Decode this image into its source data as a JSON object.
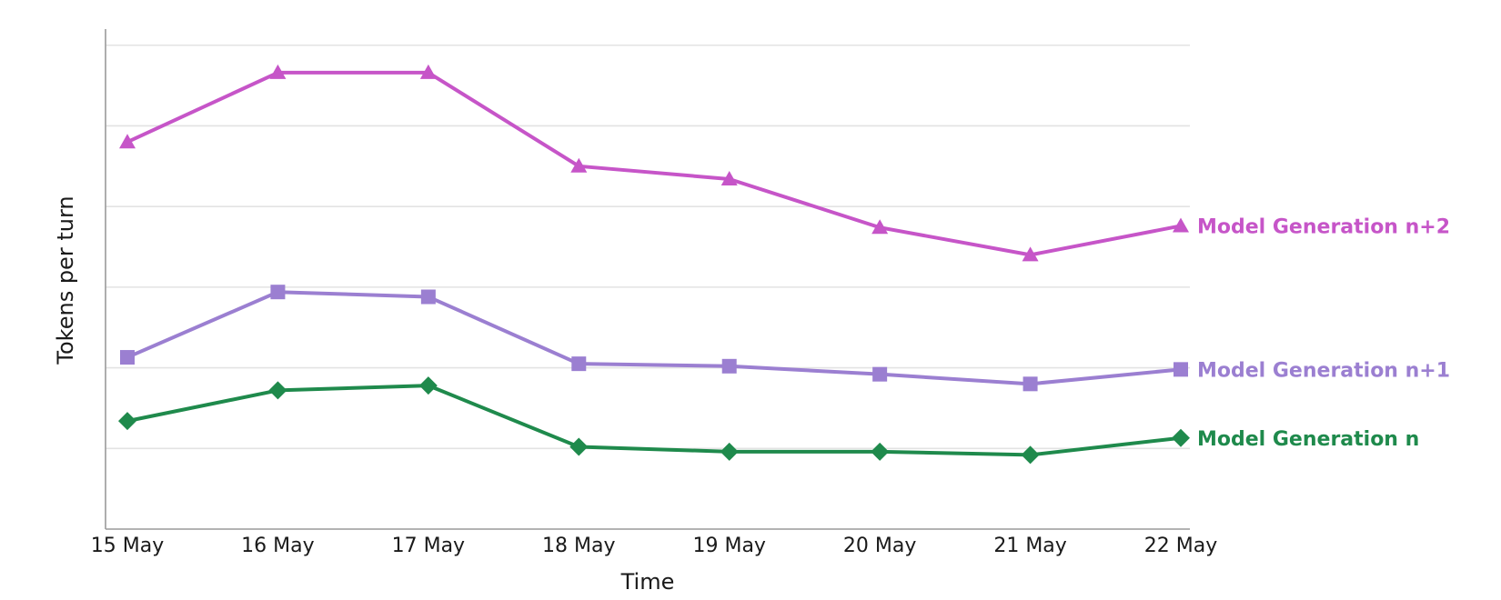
{
  "chart_data": {
    "type": "line",
    "title": "",
    "xlabel": "Time",
    "ylabel": "Tokens per turn",
    "categories": [
      "15 May",
      "16 May",
      "17 May",
      "18 May",
      "19 May",
      "20 May",
      "21 May",
      "22 May"
    ],
    "ylim": [
      0,
      6.2
    ],
    "y_ticks": [
      1,
      2,
      3,
      4,
      5,
      6
    ],
    "y_tick_labels_visible": false,
    "grid": "horizontal",
    "legend": "inline labels at right end of each line",
    "series": [
      {
        "name": "Model Generation n+2",
        "color": "#c655c8",
        "marker": "triangle",
        "values": [
          4.8,
          5.66,
          5.66,
          4.5,
          4.34,
          3.74,
          3.4,
          3.76
        ]
      },
      {
        "name": "Model Generation n+1",
        "color": "#9b7fd1",
        "marker": "square",
        "values": [
          2.13,
          2.94,
          2.88,
          2.05,
          2.02,
          1.92,
          1.8,
          1.98
        ]
      },
      {
        "name": "Model Generation n",
        "color": "#1f8a4c",
        "marker": "diamond",
        "values": [
          1.34,
          1.72,
          1.78,
          1.02,
          0.96,
          0.96,
          0.92,
          1.13
        ]
      }
    ]
  }
}
